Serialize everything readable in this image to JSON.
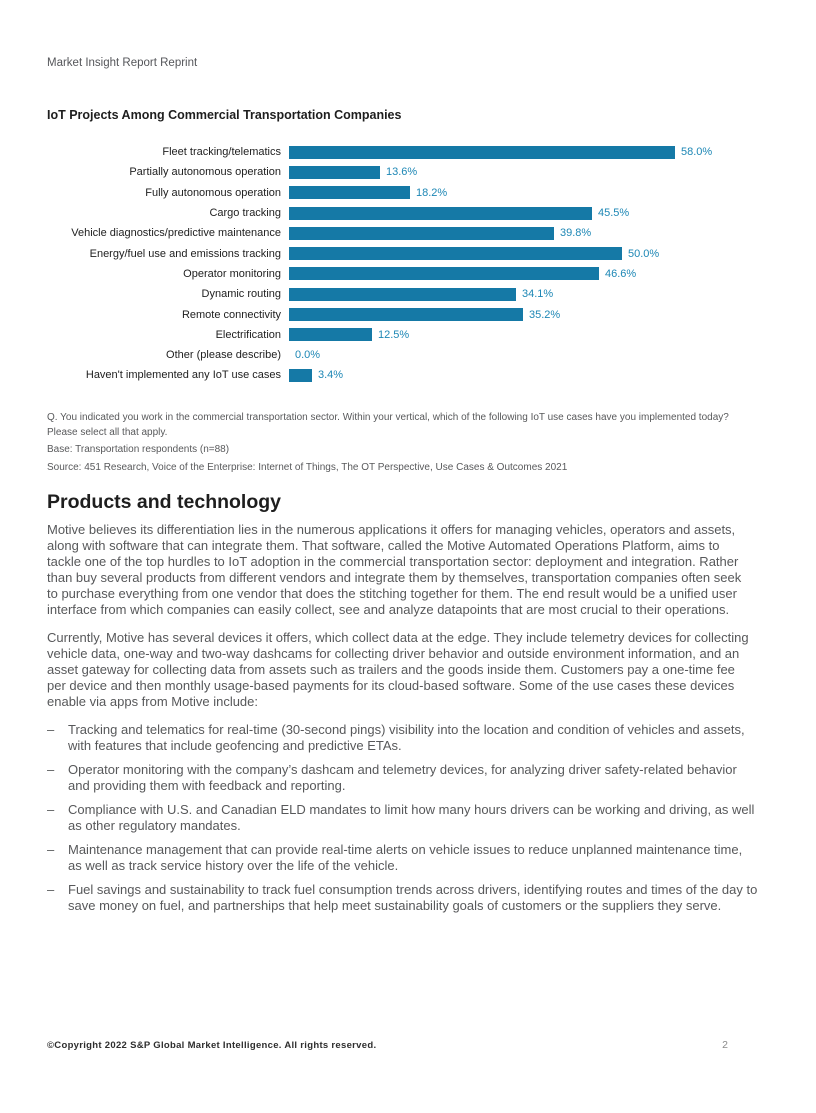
{
  "header": {
    "label": "Market Insight Report Reprint"
  },
  "chart_data": {
    "type": "bar",
    "orientation": "horizontal",
    "title": "IoT Projects Among Commercial Transportation Companies",
    "categories": [
      "Fleet tracking/telematics",
      "Partially autonomous operation",
      "Fully autonomous operation",
      "Cargo tracking",
      "Vehicle diagnostics/predictive maintenance",
      "Energy/fuel use and emissions tracking",
      "Operator monitoring",
      "Dynamic routing",
      "Remote connectivity",
      "Electrification",
      "Other (please describe)",
      "Haven't implemented any IoT use cases"
    ],
    "values": [
      58.0,
      13.6,
      18.2,
      45.5,
      39.8,
      50.0,
      46.6,
      34.1,
      35.2,
      12.5,
      0.0,
      3.4
    ],
    "value_labels": [
      "58.0%",
      "13.6%",
      "18.2%",
      "45.5%",
      "39.8%",
      "50.0%",
      "46.6%",
      "34.1%",
      "35.2%",
      "12.5%",
      "0.0%",
      "3.4%"
    ],
    "xlim": [
      0,
      60
    ],
    "grid": false,
    "legend": false,
    "bar_color": "#1579A6",
    "value_label_color": "#1D87B5"
  },
  "footnotes": {
    "question": "Q. You indicated you work in the commercial transportation sector. Within your vertical, which of the following IoT use cases have you implemented today? Please select all that apply.",
    "base": "Base: Transportation respondents (n=88)",
    "source": "Source: 451 Research, Voice of the Enterprise: Internet of Things, The OT Perspective, Use Cases & Outcomes 2021"
  },
  "section": {
    "heading": "Products and technology",
    "paragraphs": [
      "Motive believes its differentiation lies in the numerous applications it offers for managing vehicles, operators and assets, along with software that can integrate them. That software, called the Motive Automated Operations Platform, aims to tackle one of the top hurdles to IoT adoption in the commercial transportation sector: deployment and integration. Rather than buy several products from different vendors and integrate them by themselves, transportation companies often seek to purchase everything from one vendor that does the stitching together for them. The end result would be a unified user interface from which companies can easily collect, see and analyze datapoints that are most crucial to their operations.",
      "Currently, Motive has several devices it offers, which collect data at the edge. They include telemetry devices for collecting vehicle data, one-way and two-way dashcams for collecting driver behavior and outside environment information, and an asset gateway for collecting data from assets such as trailers and the goods inside them. Customers pay a one-time fee per device and then monthly usage-based payments for its cloud-based software. Some of the use cases these devices enable via apps from Motive include:"
    ],
    "bullet_marker": "–",
    "bullets": [
      "Tracking and telematics for real-time (30-second pings) visibility into the location and condition of vehicles and assets, with features that include geofencing and predictive ETAs.",
      "Operator monitoring with the company’s dashcam and telemetry devices, for analyzing driver safety-related behavior and providing them with feedback and reporting.",
      "Compliance with U.S. and Canadian ELD mandates to limit how many hours drivers can be working and driving, as well as other regulatory mandates.",
      "Maintenance management that can provide real-time alerts on vehicle issues to reduce unplanned maintenance time, as well as track service history over the life of the vehicle.",
      "Fuel savings and sustainability to track fuel consumption trends across drivers, identifying routes and times of the day to save money on fuel, and partnerships that help meet sustainability goals of customers or the suppliers they serve."
    ]
  },
  "footer": {
    "copyright": "©Copyright 2022 S&P Global Market Intelligence. All rights reserved.",
    "page_number": "2"
  }
}
